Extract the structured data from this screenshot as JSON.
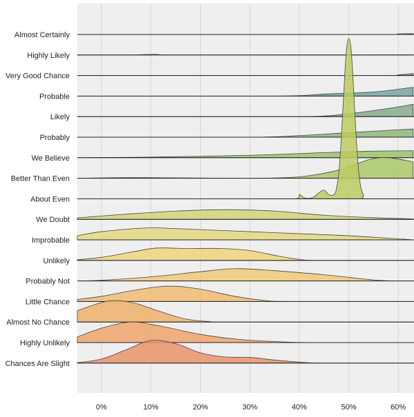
{
  "chart_data": {
    "type": "ridgeline",
    "title": "",
    "xlabel": "",
    "ylabel": "",
    "xlim": [
      -5,
      63
    ],
    "x_unit": "%",
    "grid": true,
    "x_ticks": [
      0,
      10,
      20,
      30,
      40,
      50,
      60
    ],
    "x_tick_labels": [
      "0%",
      "10%",
      "20%",
      "30%",
      "40%",
      "50%",
      "60%"
    ],
    "background": "#efefef",
    "series": [
      {
        "name": "Almost Certainly",
        "color": "#4b5fa3",
        "points": [
          [
            -5,
            0
          ],
          [
            55,
            0
          ],
          [
            60,
            0.03
          ],
          [
            63,
            0.04
          ]
        ]
      },
      {
        "name": "Highly Likely",
        "color": "#5a7aa8",
        "points": [
          [
            -5,
            0
          ],
          [
            5,
            0
          ],
          [
            11,
            0.03
          ],
          [
            17,
            0
          ],
          [
            63,
            0.01
          ]
        ]
      },
      {
        "name": "Very Good Chance",
        "color": "#5f8fb0",
        "points": [
          [
            -5,
            0
          ],
          [
            55,
            0
          ],
          [
            60,
            0.04
          ],
          [
            63,
            0.1
          ]
        ]
      },
      {
        "name": "Probable",
        "color": "#77a6a7",
        "points": [
          [
            -5,
            0
          ],
          [
            35,
            0
          ],
          [
            45,
            0.1
          ],
          [
            55,
            0.2
          ],
          [
            63,
            0.43
          ]
        ]
      },
      {
        "name": "Likely",
        "color": "#86ab8c",
        "points": [
          [
            -5,
            0
          ],
          [
            35,
            0
          ],
          [
            45,
            0.03
          ],
          [
            52,
            0.2
          ],
          [
            58,
            0.4
          ],
          [
            63,
            0.6
          ]
        ]
      },
      {
        "name": "Probably",
        "color": "#8db87a",
        "points": [
          [
            -5,
            0
          ],
          [
            30,
            0
          ],
          [
            40,
            0.08
          ],
          [
            50,
            0.22
          ],
          [
            63,
            0.4
          ]
        ]
      },
      {
        "name": "We Believe",
        "color": "#9bc36a",
        "points": [
          [
            -5,
            0
          ],
          [
            10,
            0.03
          ],
          [
            30,
            0.12
          ],
          [
            45,
            0.25
          ],
          [
            55,
            0.32
          ],
          [
            63,
            0.34
          ]
        ]
      },
      {
        "name": "Better Than Even",
        "color": "#aac86a",
        "points": [
          [
            -5,
            0
          ],
          [
            5,
            0.03
          ],
          [
            15,
            0.02
          ],
          [
            30,
            0
          ],
          [
            40,
            0.07
          ],
          [
            48,
            0.4
          ],
          [
            54,
            0.9
          ],
          [
            58,
            1.0
          ],
          [
            63,
            0.8
          ]
        ]
      },
      {
        "name": "About Even",
        "color": "#bccb60",
        "points": [
          [
            30,
            0
          ],
          [
            39,
            0
          ],
          [
            40,
            0.2
          ],
          [
            41,
            0.05
          ],
          [
            42,
            0.02
          ],
          [
            43,
            0.1
          ],
          [
            44,
            0.3
          ],
          [
            45,
            0.42
          ],
          [
            46,
            0.2
          ],
          [
            47,
            0.2
          ],
          [
            47.5,
            0.5
          ],
          [
            48,
            1.3
          ],
          [
            48.5,
            3
          ],
          [
            49,
            5.2
          ],
          [
            49.5,
            7.2
          ],
          [
            50,
            7.8
          ],
          [
            50.5,
            7.2
          ],
          [
            51,
            5.2
          ],
          [
            51.5,
            3
          ],
          [
            52,
            1.3
          ],
          [
            52.5,
            0.5
          ],
          [
            53,
            0.15
          ],
          [
            53.5,
            0
          ],
          [
            63,
            0
          ]
        ]
      },
      {
        "name": "We Doubt",
        "color": "#d3d378",
        "points": [
          [
            -5,
            0.07
          ],
          [
            5,
            0.25
          ],
          [
            15,
            0.4
          ],
          [
            25,
            0.47
          ],
          [
            35,
            0.4
          ],
          [
            45,
            0.2
          ],
          [
            55,
            0.08
          ],
          [
            63,
            0.02
          ]
        ]
      },
      {
        "name": "Improbable",
        "color": "#e2d880",
        "points": [
          [
            -5,
            0.2
          ],
          [
            0,
            0.4
          ],
          [
            9,
            0.58
          ],
          [
            15,
            0.55
          ],
          [
            25,
            0.45
          ],
          [
            40,
            0.3
          ],
          [
            50,
            0.2
          ],
          [
            60,
            0.05
          ],
          [
            63,
            0
          ]
        ]
      },
      {
        "name": "Unlikely",
        "color": "#f0d37d",
        "points": [
          [
            -5,
            0.03
          ],
          [
            0,
            0.15
          ],
          [
            6,
            0.4
          ],
          [
            11,
            0.6
          ],
          [
            17,
            0.58
          ],
          [
            24,
            0.58
          ],
          [
            30,
            0.48
          ],
          [
            36,
            0.2
          ],
          [
            41,
            0.02
          ],
          [
            45,
            0
          ],
          [
            63,
            0
          ]
        ]
      },
      {
        "name": "Probably Not",
        "color": "#f1c877",
        "points": [
          [
            -5,
            0
          ],
          [
            0,
            0.03
          ],
          [
            10,
            0.2
          ],
          [
            20,
            0.45
          ],
          [
            27,
            0.6
          ],
          [
            35,
            0.5
          ],
          [
            45,
            0.3
          ],
          [
            55,
            0.05
          ],
          [
            60,
            0
          ],
          [
            63,
            0
          ]
        ]
      },
      {
        "name": "Little Chance",
        "color": "#efbc72",
        "points": [
          [
            -5,
            0.1
          ],
          [
            0,
            0.25
          ],
          [
            8,
            0.6
          ],
          [
            14,
            0.75
          ],
          [
            20,
            0.6
          ],
          [
            27,
            0.25
          ],
          [
            33,
            0.05
          ],
          [
            38,
            0
          ],
          [
            63,
            0
          ]
        ]
      },
      {
        "name": "Almost No Chance",
        "color": "#eeb06a",
        "points": [
          [
            -5,
            0.55
          ],
          [
            0,
            0.95
          ],
          [
            3,
            1.05
          ],
          [
            7,
            0.9
          ],
          [
            12,
            0.5
          ],
          [
            17,
            0.15
          ],
          [
            22,
            0.02
          ],
          [
            26,
            0
          ],
          [
            63,
            0
          ]
        ]
      },
      {
        "name": "Highly Unlikely",
        "color": "#eea56b",
        "points": [
          [
            -5,
            0.27
          ],
          [
            0,
            0.7
          ],
          [
            6,
            1.0
          ],
          [
            12,
            0.8
          ],
          [
            20,
            0.4
          ],
          [
            28,
            0.15
          ],
          [
            38,
            0.02
          ],
          [
            45,
            0
          ],
          [
            63,
            0
          ]
        ]
      },
      {
        "name": "Chances Are Slight",
        "color": "#e9946a",
        "points": [
          [
            -5,
            0.02
          ],
          [
            0,
            0.2
          ],
          [
            5,
            0.65
          ],
          [
            10,
            1.1
          ],
          [
            15,
            0.95
          ],
          [
            20,
            0.5
          ],
          [
            25,
            0.3
          ],
          [
            30,
            0.28
          ],
          [
            35,
            0.15
          ],
          [
            40,
            0.05
          ],
          [
            45,
            0
          ],
          [
            63,
            0
          ]
        ]
      }
    ]
  }
}
